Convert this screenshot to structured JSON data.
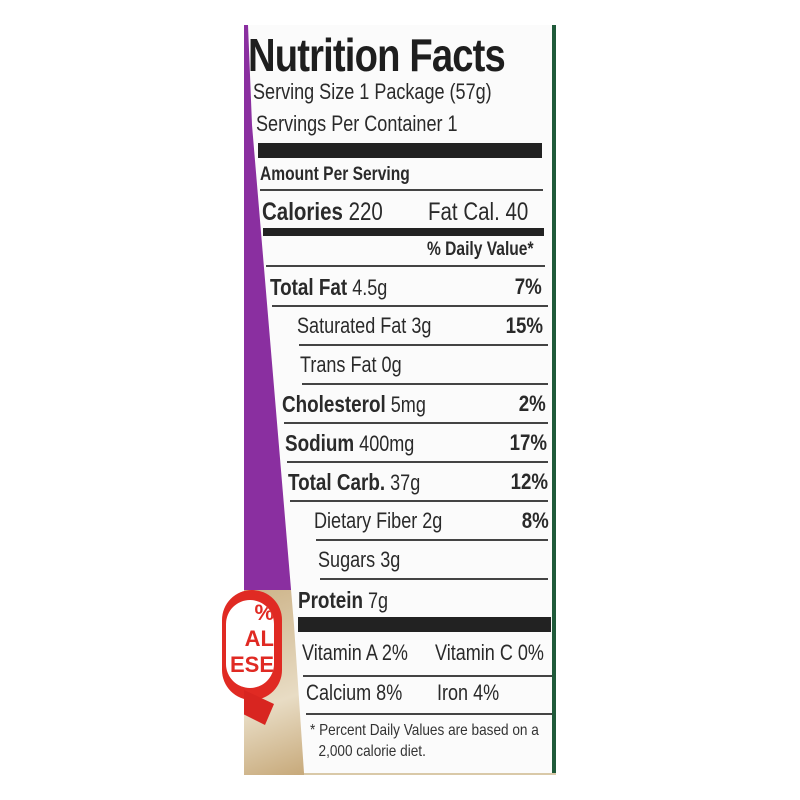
{
  "title": "Nutrition Facts",
  "serving_size": "Serving Size 1 Package (57g)",
  "servings_per_container": "Servings Per Container 1",
  "amount_per_serving": "Amount Per Serving",
  "calories": {
    "label": "Calories",
    "value": "220",
    "fat_cal": "Fat Cal. 40"
  },
  "daily_value_header": "% Daily Value*",
  "nutrients": [
    {
      "label": "Total Fat",
      "amount": "4.5g",
      "dv": "7%"
    },
    {
      "label": "Saturated Fat",
      "amount": "3g",
      "dv": "15%"
    },
    {
      "label": "Trans Fat",
      "amount": "0g",
      "dv": ""
    },
    {
      "label": "Cholesterol",
      "amount": "5mg",
      "dv": "2%"
    },
    {
      "label": "Sodium",
      "amount": "400mg",
      "dv": "17%"
    },
    {
      "label": "Total Carb.",
      "amount": "37g",
      "dv": "12%"
    },
    {
      "label": "Dietary Fiber",
      "amount": "2g",
      "dv": "8%"
    },
    {
      "label": "Sugars",
      "amount": "3g",
      "dv": ""
    },
    {
      "label": "Protein",
      "amount": "7g",
      "dv": ""
    }
  ],
  "vitamins": [
    {
      "left": "Vitamin A 2%",
      "right": "Vitamin C 0%"
    },
    {
      "left": "Calcium 8%",
      "right": "Iron 4%"
    }
  ],
  "footnote": [
    "* Percent Daily Values are based on a",
    "2,000 calorie diet."
  ],
  "badge_text": "%\nAL\nESE",
  "colors": {
    "package_purple": "#8a2fa0",
    "badge_red": "#e02a23",
    "label_white": "#fbfbfb"
  }
}
